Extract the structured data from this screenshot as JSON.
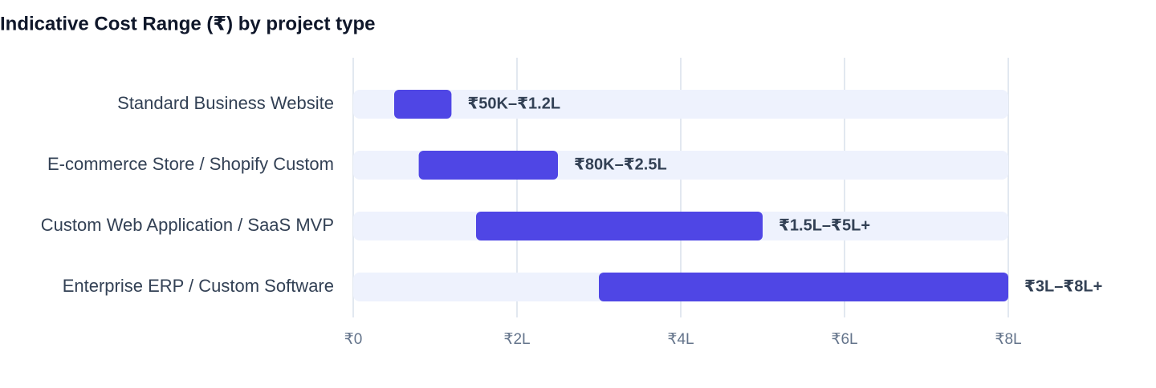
{
  "chart_data": {
    "type": "range_bar",
    "title": "Indicative Cost Range (₹) by project type",
    "categories": [
      "Standard Business Website",
      "E-commerce Store / Shopify Custom",
      "Custom Web Application / SaaS MVP",
      "Enterprise ERP / Custom Software"
    ],
    "low": [
      0.5,
      0.8,
      1.5,
      3
    ],
    "high": [
      1.2,
      2.5,
      5,
      8
    ],
    "value_labels": [
      "₹50K–₹1.2L",
      "₹80K–₹2.5L",
      "₹1.5L–₹5L+",
      "₹3L–₹8L+"
    ],
    "color": "#4f46e5",
    "xlim": [
      0,
      8
    ],
    "xticks": [
      {
        "value": 0,
        "label": "₹0"
      },
      {
        "value": 2,
        "label": "₹2L"
      },
      {
        "value": 4,
        "label": "₹4L"
      },
      {
        "value": 6,
        "label": "₹6L"
      },
      {
        "value": 8,
        "label": "₹8L"
      }
    ],
    "grid": true
  }
}
